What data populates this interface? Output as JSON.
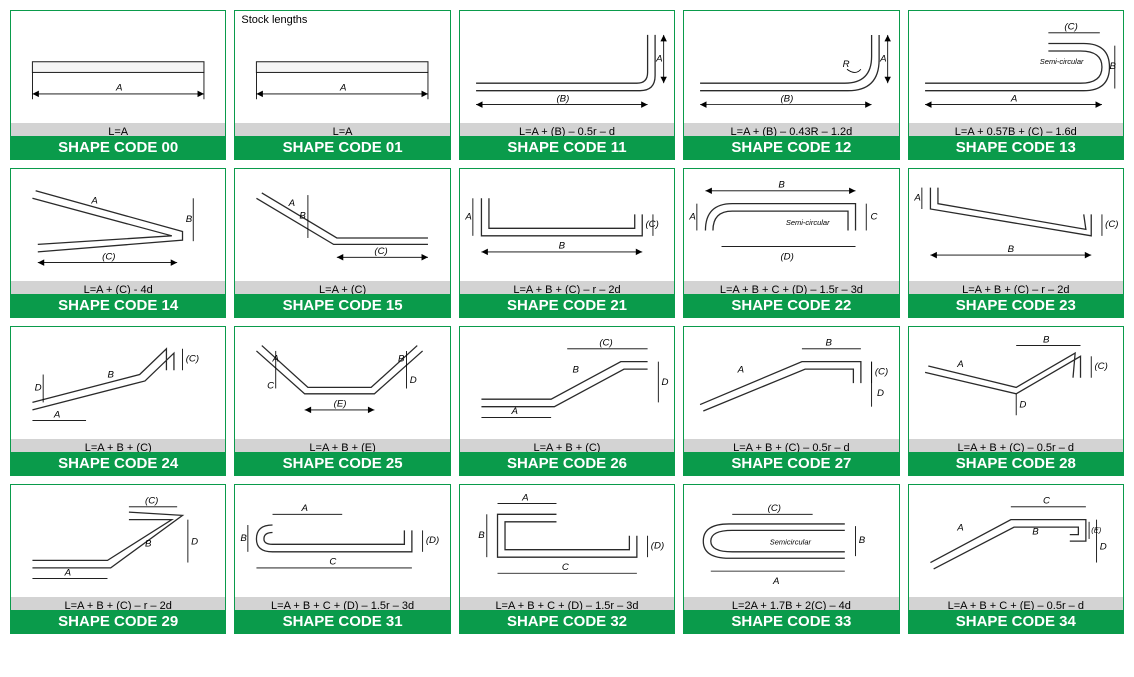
{
  "colors": {
    "card_border": "#0a9b4b",
    "formula_bg": "#d3d3d3",
    "code_bg": "#0a9b4b",
    "code_text": "#ffffff",
    "diagram_stroke": "#2a2a2a",
    "dim_color": "#000000"
  },
  "fontsizes": {
    "formula": 11,
    "code": 15,
    "dim": 9,
    "note": 11
  },
  "shapes": [
    {
      "id": "00",
      "formula": "L=A",
      "code": "SHAPE CODE 00",
      "note": "",
      "svg": "s00",
      "dims": [
        "A"
      ]
    },
    {
      "id": "01",
      "formula": "L=A",
      "code": "SHAPE CODE 01",
      "note": "Stock lengths",
      "svg": "s01",
      "dims": [
        "A"
      ]
    },
    {
      "id": "11",
      "formula": "L=A + (B) – 0.5r – d",
      "code": "SHAPE CODE 11",
      "note": "",
      "svg": "s11",
      "dims": [
        "A",
        "(B)"
      ]
    },
    {
      "id": "12",
      "formula": "L=A + (B) – 0.43R – 1.2d",
      "code": "SHAPE CODE 12",
      "note": "",
      "svg": "s12",
      "dims": [
        "A",
        "(B)",
        "R"
      ]
    },
    {
      "id": "13",
      "formula": "L=A + 0.57B + (C) – 1.6d",
      "code": "SHAPE CODE 13",
      "note": "",
      "svg": "s13",
      "dims": [
        "A",
        "B",
        "(C)",
        "Semi-circular"
      ]
    },
    {
      "id": "14",
      "formula": "L=A + (C) - 4d",
      "code": "SHAPE CODE 14",
      "note": "",
      "svg": "s14",
      "dims": [
        "A",
        "B",
        "(C)"
      ]
    },
    {
      "id": "15",
      "formula": "L=A + (C)",
      "code": "SHAPE CODE 15",
      "note": "",
      "svg": "s15",
      "dims": [
        "A",
        "B",
        "(C)"
      ]
    },
    {
      "id": "21",
      "formula": "L=A + B + (C) – r – 2d",
      "code": "SHAPE CODE 21",
      "note": "",
      "svg": "s21",
      "dims": [
        "A",
        "B",
        "(C)"
      ]
    },
    {
      "id": "22",
      "formula": "L=A + B + C + (D) – 1.5r – 3d",
      "code": "SHAPE CODE 22",
      "note": "",
      "svg": "s22",
      "dims": [
        "A",
        "B",
        "C",
        "(D)",
        "Semi-circular"
      ]
    },
    {
      "id": "23",
      "formula": "L=A + B + (C) – r – 2d",
      "code": "SHAPE CODE 23",
      "note": "",
      "svg": "s23",
      "dims": [
        "A",
        "B",
        "(C)"
      ]
    },
    {
      "id": "24",
      "formula": "L=A + B + (C)",
      "code": "SHAPE CODE 24",
      "note": "",
      "svg": "s24",
      "dims": [
        "A",
        "B",
        "(C)",
        "D"
      ]
    },
    {
      "id": "25",
      "formula": "L=A + B + (E)",
      "code": "SHAPE CODE 25",
      "note": "",
      "svg": "s25",
      "dims": [
        "A",
        "B",
        "(E)",
        "C",
        "D"
      ]
    },
    {
      "id": "26",
      "formula": "L=A + B + (C)",
      "code": "SHAPE CODE 26",
      "note": "",
      "svg": "s26",
      "dims": [
        "A",
        "B",
        "(C)",
        "D"
      ]
    },
    {
      "id": "27",
      "formula": "L=A + B + (C) – 0.5r – d",
      "code": "SHAPE CODE 27",
      "note": "",
      "svg": "s27",
      "dims": [
        "A",
        "B",
        "(C)",
        "D"
      ]
    },
    {
      "id": "28",
      "formula": "L=A + B + (C) – 0.5r – d",
      "code": "SHAPE CODE 28",
      "note": "",
      "svg": "s28",
      "dims": [
        "A",
        "B",
        "(C)",
        "D"
      ]
    },
    {
      "id": "29",
      "formula": "L=A + B + (C) – r – 2d",
      "code": "SHAPE CODE 29",
      "note": "",
      "svg": "s29",
      "dims": [
        "A",
        "B",
        "(C)",
        "D"
      ]
    },
    {
      "id": "31",
      "formula": "L=A + B + C + (D) – 1.5r – 3d",
      "code": "SHAPE CODE 31",
      "note": "",
      "svg": "s31",
      "dims": [
        "A",
        "B",
        "C",
        "(D)"
      ]
    },
    {
      "id": "32",
      "formula": "L=A + B + C + (D) – 1.5r – 3d",
      "code": "SHAPE CODE 32",
      "note": "",
      "svg": "s32",
      "dims": [
        "A",
        "B",
        "C",
        "(D)"
      ]
    },
    {
      "id": "33",
      "formula": "L=2A + 1.7B + 2(C) – 4d",
      "code": "SHAPE CODE 33",
      "note": "",
      "svg": "s33",
      "dims": [
        "A",
        "B",
        "(C)",
        "Semicircular"
      ]
    },
    {
      "id": "34",
      "formula": "L=A + B + C + (E) – 0.5r – d",
      "code": "SHAPE CODE 34",
      "note": "",
      "svg": "s34",
      "dims": [
        "A",
        "B",
        "C",
        "D",
        "(E)"
      ]
    }
  ]
}
